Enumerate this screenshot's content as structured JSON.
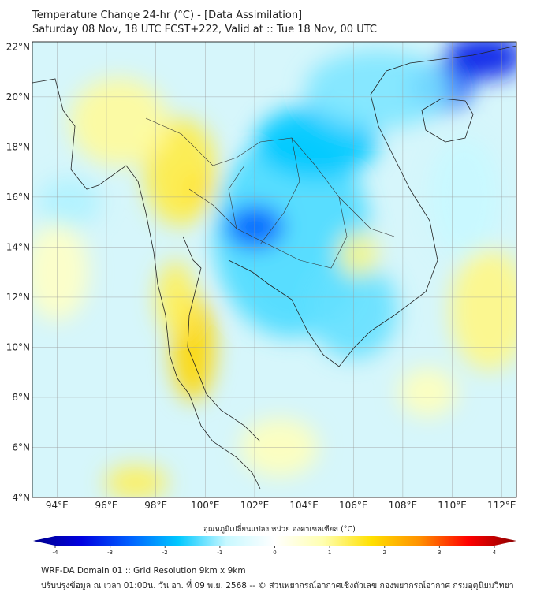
{
  "header": {
    "title": "Temperature Change 24-hr (°C) - [Data Assimilation]",
    "subtitle": "Saturday 08 Nov, 18 UTC FCST+222, Valid at :: Tue 18 Nov, 00 UTC"
  },
  "map": {
    "lat_labels": [
      "4°N",
      "6°N",
      "8°N",
      "10°N",
      "12°N",
      "14°N",
      "16°N",
      "18°N",
      "20°N",
      "22°N"
    ],
    "lat_values": [
      4,
      6,
      8,
      10,
      12,
      14,
      16,
      18,
      20,
      22
    ],
    "lon_labels": [
      "94°E",
      "96°E",
      "98°E",
      "100°E",
      "102°E",
      "104°E",
      "106°E",
      "108°E",
      "110°E",
      "112°E"
    ],
    "lon_values": [
      94,
      96,
      98,
      100,
      102,
      104,
      106,
      108,
      110,
      112
    ],
    "extent": {
      "lon": [
        93,
        112.6
      ],
      "lat": [
        4,
        22.2
      ]
    },
    "field_features": [
      {
        "lon": 103.5,
        "lat": 14.5,
        "value": -1.3,
        "rx": 3.2,
        "ry": 4.2
      },
      {
        "lon": 102,
        "lat": 14.8,
        "value": -2.4,
        "rx": 1.2,
        "ry": 0.9
      },
      {
        "lon": 104.5,
        "lat": 18.2,
        "value": -1.6,
        "rx": 2.5,
        "ry": 1.5
      },
      {
        "lon": 106,
        "lat": 11.5,
        "value": -1.2,
        "rx": 1.8,
        "ry": 2.0
      },
      {
        "lon": 109.5,
        "lat": 20.4,
        "value": -2.6,
        "rx": 1.3,
        "ry": 1.0
      },
      {
        "lon": 111.3,
        "lat": 21.6,
        "value": -3.0,
        "rx": 1.6,
        "ry": 0.9
      },
      {
        "lon": 107,
        "lat": 20.3,
        "value": -1.1,
        "rx": 3.0,
        "ry": 1.6
      },
      {
        "lon": 94.5,
        "lat": 15.8,
        "value": -0.9,
        "rx": 1.3,
        "ry": 1.0
      },
      {
        "lon": 110.5,
        "lat": 16,
        "value": -0.8,
        "rx": 1.5,
        "ry": 2.5
      },
      {
        "lon": 99.7,
        "lat": 16.3,
        "value": 2.4,
        "rx": 0.7,
        "ry": 0.7
      },
      {
        "lon": 99,
        "lat": 17,
        "value": 1.3,
        "rx": 1.5,
        "ry": 2.2
      },
      {
        "lon": 96.5,
        "lat": 19,
        "value": 0.9,
        "rx": 2.0,
        "ry": 1.8
      },
      {
        "lon": 99.5,
        "lat": 10,
        "value": 1.7,
        "rx": 0.9,
        "ry": 2.2
      },
      {
        "lon": 98.8,
        "lat": 12,
        "value": 1.2,
        "rx": 0.8,
        "ry": 1.5
      },
      {
        "lon": 111.5,
        "lat": 11.5,
        "value": 1.0,
        "rx": 1.6,
        "ry": 2.5
      },
      {
        "lon": 106.2,
        "lat": 13.7,
        "value": 1.0,
        "rx": 0.8,
        "ry": 0.9
      },
      {
        "lon": 97.2,
        "lat": 4.6,
        "value": 1.2,
        "rx": 1.3,
        "ry": 0.7
      },
      {
        "lon": 94,
        "lat": 13,
        "value": 0.6,
        "rx": 1.3,
        "ry": 2.0
      },
      {
        "lon": 103,
        "lat": 6,
        "value": 0.7,
        "rx": 1.6,
        "ry": 1.2
      },
      {
        "lon": 109,
        "lat": 8.2,
        "value": 0.7,
        "rx": 1.2,
        "ry": 1.0
      }
    ]
  },
  "colorbar": {
    "label": "อุณหภูมิเปลี่ยนแปลง หน่วย องศาเซลเซียส (°C)",
    "ticks": [
      "-4",
      "-3",
      "-2",
      "-1",
      "0",
      "1",
      "2",
      "3",
      "4"
    ],
    "range": [
      -4,
      4
    ],
    "colors": [
      "#00008b",
      "#0000e0",
      "#0060ff",
      "#00c8ff",
      "#c8f8ff",
      "#ffffff",
      "#ffffb0",
      "#ffe000",
      "#ff9000",
      "#ff0000",
      "#8b0000"
    ]
  },
  "footer": {
    "line1": "WRF-DA Domain 01 :: Grid Resolution 9km x 9km",
    "line2": "ปรับปรุงข้อมูล ณ เวลา 01:00น. วัน อา. ที่ 09 พ.ย. 2568 -- © ส่วนพยากรณ์อากาศเชิงตัวเลข กองพยากรณ์อากาศ กรมอุตุนิยมวิทยา"
  }
}
